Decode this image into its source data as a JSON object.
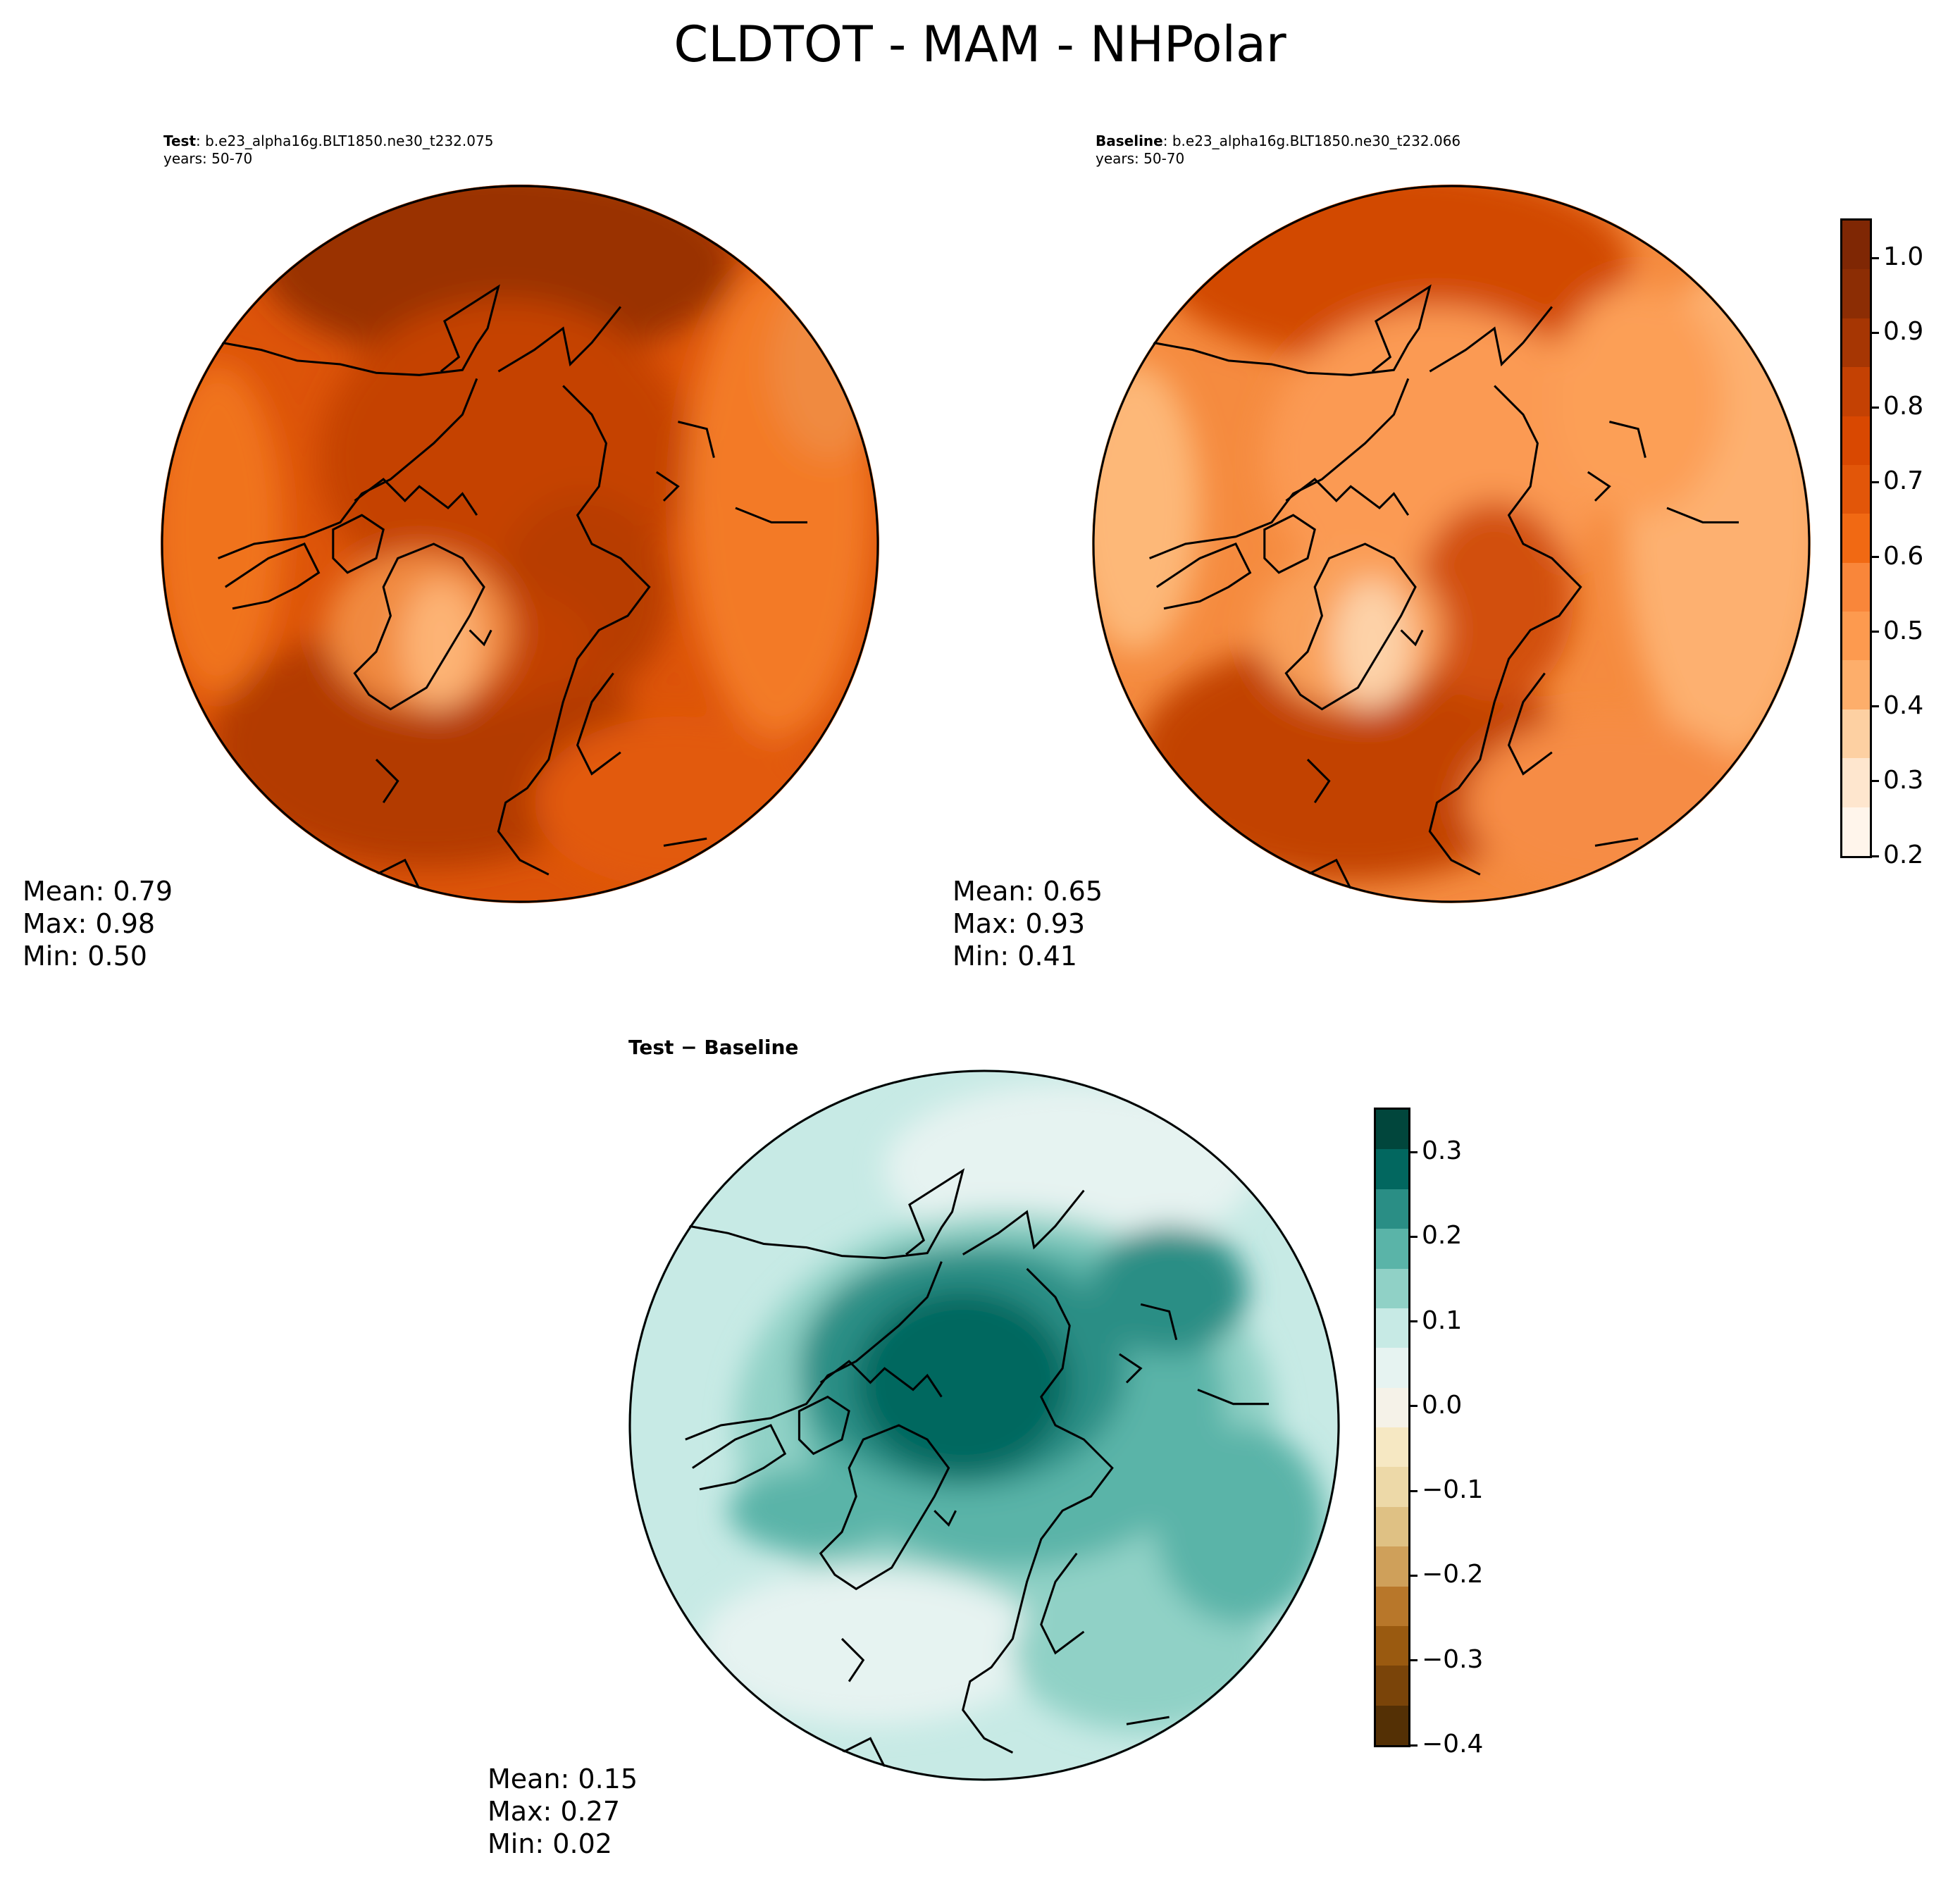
{
  "figure": {
    "title": "CLDTOT - MAM - NHPolar"
  },
  "panels": [
    {
      "id": "test",
      "label_bold": "Test",
      "label_rest": ": b.e23_alpha16g.BLT1850.ne30_t232.075",
      "years": "years: 50-70",
      "stats": {
        "mean": "Mean:  0.79",
        "max": "Max:  0.98",
        "min": "Min:  0.50"
      }
    },
    {
      "id": "baseline",
      "label_bold": "Baseline",
      "label_rest": ": b.e23_alpha16g.BLT1850.ne30_t232.066",
      "years": "years: 50-70",
      "stats": {
        "mean": "Mean:  0.65",
        "max": "Max:  0.93",
        "min": "Min:  0.41"
      }
    },
    {
      "id": "diff",
      "label": "Test − Baseline",
      "stats": {
        "mean": "Mean:  0.15",
        "max": "Max:  0.27",
        "min": "Min:  0.02"
      }
    }
  ],
  "colorbars": {
    "main": {
      "min": 0.2,
      "max": 1.05,
      "ticks": [
        "0.2",
        "0.3",
        "0.4",
        "0.5",
        "0.6",
        "0.7",
        "0.8",
        "0.9",
        "1.0"
      ],
      "colors": [
        "#fff5eb",
        "#fee6ce",
        "#fdd0a2",
        "#fdae6b",
        "#fd9a4f",
        "#f9863a",
        "#f16913",
        "#e25609",
        "#d94801",
        "#c44103",
        "#a63603",
        "#8c2d04",
        "#7f2704"
      ]
    },
    "diff": {
      "min": -0.4,
      "max": 0.35,
      "ticks": [
        "−0.4",
        "−0.3",
        "−0.2",
        "−0.1",
        "0.0",
        "0.1",
        "0.2",
        "0.3"
      ],
      "colors": [
        "#543005",
        "#7a4409",
        "#9a5a10",
        "#b8772a",
        "#cfa05a",
        "#dfc184",
        "#edd9a8",
        "#f6e8c3",
        "#f5f2e8",
        "#e6f3f1",
        "#c7eae5",
        "#90d1c6",
        "#5ab4a8",
        "#2a8e85",
        "#02675f",
        "#01463c"
      ]
    }
  }
}
